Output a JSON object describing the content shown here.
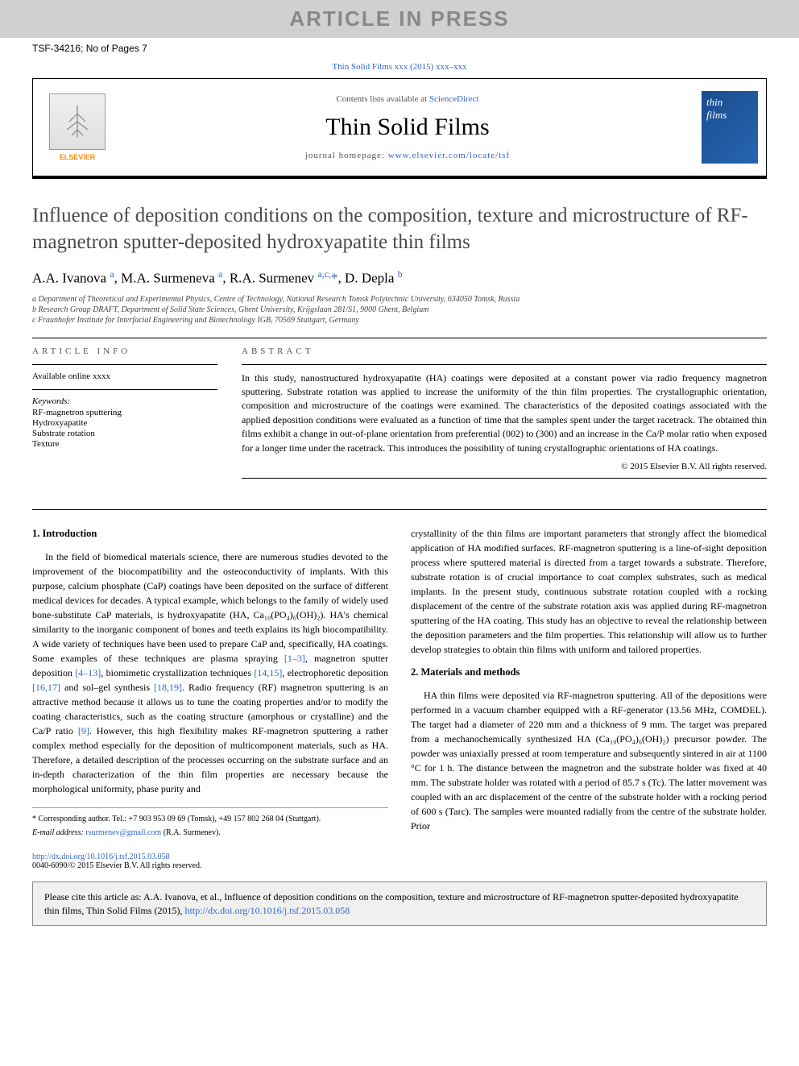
{
  "banner_text": "ARTICLE IN PRESS",
  "doc_id": "TSF-34216; No of Pages 7",
  "citation_top": "Thin Solid Films xxx (2015) xxx–xxx",
  "header": {
    "elsevier_label": "ELSEVIER",
    "contents_prefix": "Contents lists available at ",
    "contents_link": "ScienceDirect",
    "journal_name": "Thin Solid Films",
    "homepage_prefix": "journal homepage: ",
    "homepage_url": "www.elsevier.com/locate/tsf",
    "cover_line1": "thin",
    "cover_line2": "films"
  },
  "article": {
    "title": "Influence of deposition conditions on the composition, texture and microstructure of RF-magnetron sputter-deposited hydroxyapatite thin films",
    "authors_html": "A.A. Ivanova <sup class='affil-marker'>a</sup>, M.A. Surmeneva <sup class='affil-marker'>a</sup>, R.A. Surmenev <sup class='affil-marker'>a,c,</sup><span class='corr-star'>*</span>, D. Depla <sup class='affil-marker'>b</sup>",
    "affiliations": [
      "a Department of Theoretical and Experimental Physics, Centre of Technology, National Research Tomsk Polytechnic University, 634050 Tomsk, Russia",
      "b Research Group DRAFT, Department of Solid State Sciences, Ghent University, Krijgslaan 281/S1, 9000 Ghent, Belgium",
      "c Fraunhofer Institute for Interfacial Engineering and Biotechnology IGB, 70569 Stuttgart, Germany"
    ]
  },
  "info": {
    "heading": "ARTICLE INFO",
    "available": "Available online xxxx",
    "kw_label": "Keywords:",
    "keywords": [
      "RF-magnetron sputtering",
      "Hydroxyapatite",
      "Substrate rotation",
      "Texture"
    ]
  },
  "abstract": {
    "heading": "ABSTRACT",
    "text": "In this study, nanostructured hydroxyapatite (HA) coatings were deposited at a constant power via radio frequency magnetron sputtering. Substrate rotation was applied to increase the uniformity of the thin film properties. The crystallographic orientation, composition and microstructure of the coatings were examined. The characteristics of the deposited coatings associated with the applied deposition conditions were evaluated as a function of time that the samples spent under the target racetrack. The obtained thin films exhibit a change in out-of-plane orientation from preferential (002) to (300) and an increase in the Ca/P molar ratio when exposed for a longer time under the racetrack. This introduces the possibility of tuning crystallographic orientations of HA coatings.",
    "copyright": "© 2015 Elsevier B.V. All rights reserved."
  },
  "body": {
    "intro_heading": "1. Introduction",
    "intro_para": "In the field of biomedical materials science, there are numerous studies devoted to the improvement of the biocompatibility and the osteoconductivity of implants. With this purpose, calcium phosphate (CaP) coatings have been deposited on the surface of different medical devices for decades. A typical example, which belongs to the family of widely used bone-substitute CaP materials, is hydroxyapatite (HA, Ca₁₀(PO₄)₆(OH)₂). HA's chemical similarity to the inorganic component of bones and teeth explains its high biocompatibility. A wide variety of techniques have been used to prepare CaP and, specifically, HA coatings. Some examples of these techniques are plasma spraying <span class='ref-link'>[1–3]</span>, magnetron sputter deposition <span class='ref-link'>[4–13]</span>, biomimetic crystallization techniques <span class='ref-link'>[14,15]</span>, electrophoretic deposition <span class='ref-link'>[16,17]</span> and sol–gel synthesis <span class='ref-link'>[18,19]</span>. Radio frequency (RF) magnetron sputtering is an attractive method because it allows us to tune the coating properties and/or to modify the coating characteristics, such as the coating structure (amorphous or crystalline) and the Ca/P ratio <span class='ref-link'>[9]</span>. However, this high flexibility makes RF-magnetron sputtering a rather complex method especially for the deposition of multicomponent materials, such as HA. Therefore, a detailed description of the processes occurring on the substrate surface and an in-depth characterization of the thin film properties are necessary because the morphological uniformity, phase purity and",
    "col2_para1": "crystallinity of the thin films are important parameters that strongly affect the biomedical application of HA modified surfaces. RF-magnetron sputtering is a line-of-sight deposition process where sputtered material is directed from a target towards a substrate. Therefore, substrate rotation is of crucial importance to coat complex substrates, such as medical implants. In the present study, continuous substrate rotation coupled with a rocking displacement of the centre of the substrate rotation axis was applied during RF-magnetron sputtering of the HA coating. This study has an objective to reveal the relationship between the deposition parameters and the film properties. This relationship will allow us to further develop strategies to obtain thin films with uniform and tailored properties.",
    "mm_heading": "2. Materials and methods",
    "mm_para": "HA thin films were deposited via RF-magnetron sputtering. All of the depositions were performed in a vacuum chamber equipped with a RF-generator (13.56 MHz, COMDEL). The target had a diameter of 220 mm and a thickness of 9 mm. The target was prepared from a mechanochemically synthesized HA (Ca₁₀(PO₄)₆(OH)₂) precursor powder. The powder was uniaxially pressed at room temperature and subsequently sintered in air at 1100 °C for 1 h. The distance between the magnetron and the substrate holder was fixed at 40 mm. The substrate holder was rotated with a period of 85.7 s (Tc). The latter movement was coupled with an arc displacement of the centre of the substrate holder with a rocking period of 600 s (Tarc). The samples were mounted radially from the centre of the substrate holder. Prior"
  },
  "footnote": {
    "corr": "* Corresponding author. Tel.: +7 903 953 09 69 (Tomsk), +49 157 802 268 04 (Stuttgart).",
    "email_label": "E-mail address: ",
    "email": "rsurmenev@gmail.com",
    "email_suffix": " (R.A. Surmenev)."
  },
  "doi": {
    "url": "http://dx.doi.org/10.1016/j.tsf.2015.03.058",
    "line2": "0040-6090/© 2015 Elsevier B.V. All rights reserved."
  },
  "cite_box": {
    "prefix": "Please cite this article as: A.A. Ivanova, et al., Influence of deposition conditions on the composition, texture and microstructure of RF-magnetron sputter-deposited hydroxyapatite thin films, Thin Solid Films (2015), ",
    "url": "http://dx.doi.org/10.1016/j.tsf.2015.03.058"
  },
  "colors": {
    "banner_bg": "#d0d0d0",
    "banner_text": "#888888",
    "link": "#3366cc",
    "cover_bg": "#2766b0",
    "cite_bg": "#f0f0f0"
  }
}
